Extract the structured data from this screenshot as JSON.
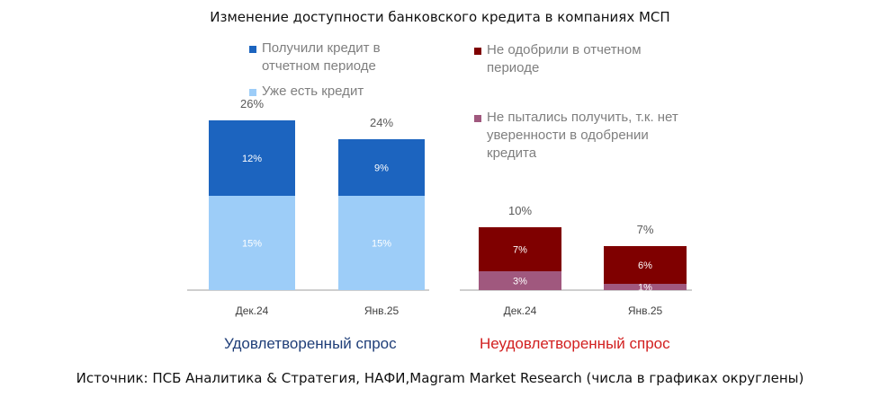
{
  "title": "Изменение доступности банковского кредита в компаниях МСП",
  "source": "Источник: ПСБ Аналитика & Стратегия, НАФИ,Magram Market Research (числа в графиках округлены)",
  "colors": {
    "received": "#1c64bf",
    "existing": "#9dcdf8",
    "not_approved": "#7f0000",
    "did_not_try": "#a0587e",
    "satisfied_label": "#1f3e78",
    "unsatisfied_label": "#d22020"
  },
  "legend": [
    {
      "label": "Получили кредит в\nотчетном периоде",
      "color": "#1c64bf"
    },
    {
      "label": "Уже есть кредит",
      "color": "#9dcdf8"
    },
    {
      "label": "Не одобрили в отчетном\nпериоде",
      "color": "#7f0000"
    },
    {
      "label": "Не пытались получить, т.к. нет\nуверенности в одобрении\nкредита",
      "color": "#a0587e"
    }
  ],
  "chart_data": [
    {
      "type": "bar",
      "stacked": true,
      "group_label": "Удовлетворенный спрос",
      "categories": [
        "Дек.24",
        "Янв.25"
      ],
      "series": [
        {
          "name": "Уже есть кредит",
          "values": [
            15,
            15
          ],
          "labels": [
            "15%",
            "15%"
          ],
          "color": "#9dcdf8"
        },
        {
          "name": "Получили кредит в отчетном периоде",
          "values": [
            12,
            9
          ],
          "labels": [
            "12%",
            "9%"
          ],
          "color": "#1c64bf"
        }
      ],
      "totals": [
        "26%",
        "24%"
      ]
    },
    {
      "type": "bar",
      "stacked": true,
      "group_label": "Неудовлетворенный спрос",
      "categories": [
        "Дек.24",
        "Янв.25"
      ],
      "series": [
        {
          "name": "Не пытались получить, т.к. нет уверенности в одобрении кредита",
          "values": [
            3,
            1
          ],
          "labels": [
            "3%",
            "1%"
          ],
          "color": "#a0587e"
        },
        {
          "name": "Не одобрили в отчетном периоде",
          "values": [
            7,
            6
          ],
          "labels": [
            "7%",
            "6%"
          ],
          "color": "#7f0000"
        }
      ],
      "totals": [
        "10%",
        "7%"
      ]
    }
  ]
}
